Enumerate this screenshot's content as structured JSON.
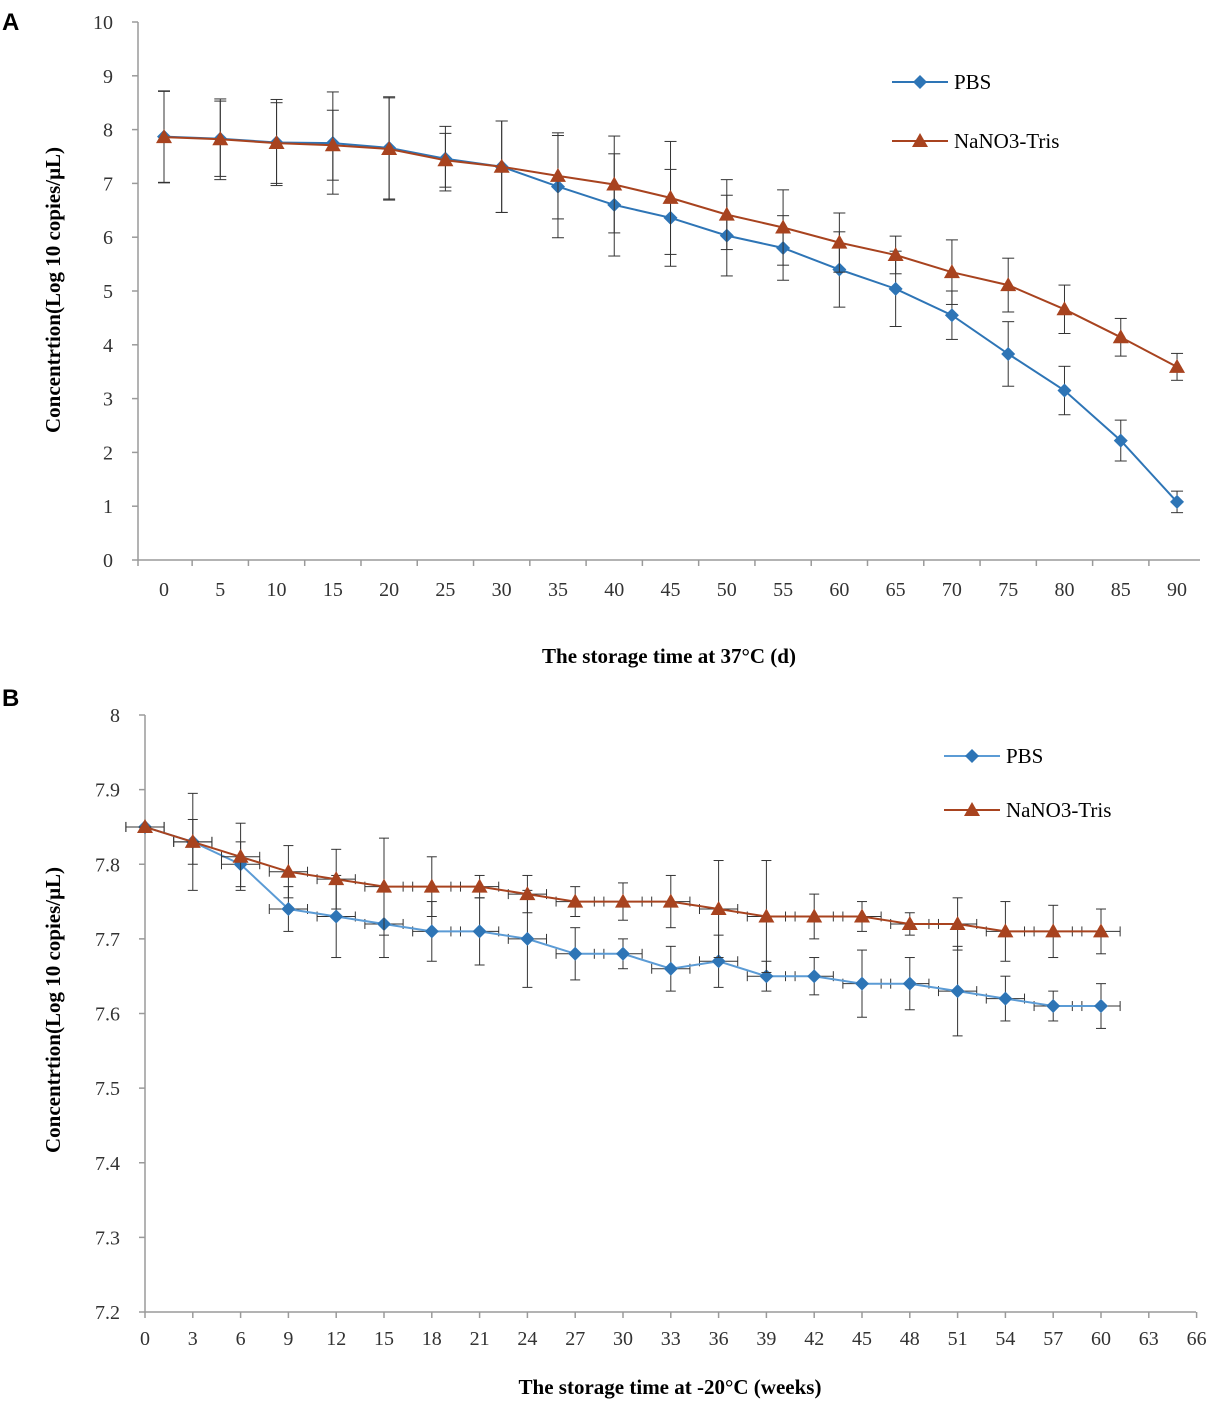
{
  "chart_data": [
    {
      "type": "line",
      "panel_label": "A",
      "title": "",
      "xlabel": "The storage time at 37°C (d)",
      "ylabel": "Concentrtion(Log 10 copies/μL)",
      "x_ticks": [
        "0",
        "5",
        "10",
        "15",
        "20",
        "25",
        "30",
        "35",
        "40",
        "45",
        "50",
        "55",
        "60",
        "65",
        "70",
        "75",
        "80",
        "85",
        "90"
      ],
      "y_ticks": [
        "0",
        "1",
        "2",
        "3",
        "4",
        "5",
        "6",
        "7",
        "8",
        "9",
        "10"
      ],
      "ylim": [
        0,
        10
      ],
      "legend_position": "top-right",
      "series": [
        {
          "name": "PBS",
          "color": "#2e75b6",
          "marker": "diamond",
          "x": [
            0,
            5,
            10,
            15,
            20,
            25,
            30,
            35,
            40,
            45,
            50,
            55,
            60,
            65,
            70,
            75,
            80,
            85,
            90
          ],
          "values": [
            7.87,
            7.83,
            7.76,
            7.75,
            7.66,
            7.46,
            7.31,
            6.94,
            6.6,
            6.36,
            6.03,
            5.8,
            5.4,
            5.04,
            4.55,
            3.83,
            3.15,
            2.22,
            1.08
          ],
          "errors": [
            0.85,
            0.7,
            0.8,
            0.95,
            0.95,
            0.6,
            0.85,
            0.95,
            0.95,
            0.9,
            0.75,
            0.6,
            0.7,
            0.7,
            0.45,
            0.6,
            0.45,
            0.38,
            0.2
          ]
        },
        {
          "name": "NaNO3-Tris",
          "color": "#a8431f",
          "marker": "triangle",
          "x": [
            0,
            5,
            10,
            15,
            20,
            25,
            30,
            35,
            40,
            45,
            50,
            55,
            60,
            65,
            70,
            75,
            80,
            85,
            90
          ],
          "values": [
            7.86,
            7.82,
            7.75,
            7.71,
            7.64,
            7.43,
            7.31,
            7.14,
            6.98,
            6.73,
            6.42,
            6.18,
            5.9,
            5.67,
            5.35,
            5.11,
            4.66,
            4.14,
            3.59
          ],
          "errors": [
            0.85,
            0.75,
            0.75,
            0.65,
            0.95,
            0.5,
            0.85,
            0.8,
            0.9,
            1.05,
            0.65,
            0.7,
            0.55,
            0.35,
            0.6,
            0.5,
            0.45,
            0.35,
            0.25
          ]
        }
      ]
    },
    {
      "type": "line",
      "panel_label": "B",
      "title": "",
      "xlabel": "The storage time at -20°C (weeks)",
      "ylabel": "Concentrtion(Log 10 copies/μL)",
      "x_ticks": [
        "0",
        "3",
        "6",
        "9",
        "12",
        "15",
        "18",
        "21",
        "24",
        "27",
        "30",
        "33",
        "36",
        "39",
        "42",
        "45",
        "48",
        "51",
        "54",
        "57",
        "60",
        "63",
        "66"
      ],
      "y_ticks": [
        "7.2",
        "7.3",
        "7.4",
        "7.5",
        "7.6",
        "7.7",
        "7.8",
        "7.9",
        "8"
      ],
      "ylim": [
        7.2,
        8.0
      ],
      "legend_position": "top-right",
      "series": [
        {
          "name": "PBS",
          "color": "#5b9bd5",
          "marker": "diamond",
          "x": [
            0,
            3,
            6,
            9,
            12,
            15,
            18,
            21,
            24,
            27,
            30,
            33,
            36,
            39,
            42,
            45,
            48,
            51,
            54,
            57,
            60
          ],
          "values": [
            7.85,
            7.83,
            7.8,
            7.74,
            7.73,
            7.72,
            7.71,
            7.71,
            7.7,
            7.68,
            7.68,
            7.66,
            7.67,
            7.65,
            7.65,
            7.64,
            7.64,
            7.63,
            7.62,
            7.61,
            7.61
          ],
          "errors": [
            0.0,
            0.03,
            0.03,
            0.03,
            0.055,
            0.045,
            0.04,
            0.045,
            0.065,
            0.035,
            0.02,
            0.03,
            0.035,
            0.02,
            0.025,
            0.045,
            0.035,
            0.06,
            0.03,
            0.02,
            0.03
          ],
          "xerr": 1.2
        },
        {
          "name": "NaNO3-Tris",
          "color": "#a8431f",
          "marker": "triangle",
          "x": [
            0,
            3,
            6,
            9,
            12,
            15,
            18,
            21,
            24,
            27,
            30,
            33,
            36,
            39,
            42,
            45,
            48,
            51,
            54,
            57,
            60
          ],
          "values": [
            7.85,
            7.83,
            7.81,
            7.79,
            7.78,
            7.77,
            7.77,
            7.77,
            7.76,
            7.75,
            7.75,
            7.75,
            7.74,
            7.73,
            7.73,
            7.73,
            7.72,
            7.72,
            7.71,
            7.71,
            7.71
          ],
          "errors": [
            0.0,
            0.065,
            0.045,
            0.035,
            0.04,
            0.065,
            0.04,
            0.015,
            0.025,
            0.02,
            0.025,
            0.035,
            0.065,
            0.075,
            0.03,
            0.02,
            0.015,
            0.035,
            0.04,
            0.035,
            0.03
          ],
          "xerr": 1.2
        }
      ]
    }
  ]
}
